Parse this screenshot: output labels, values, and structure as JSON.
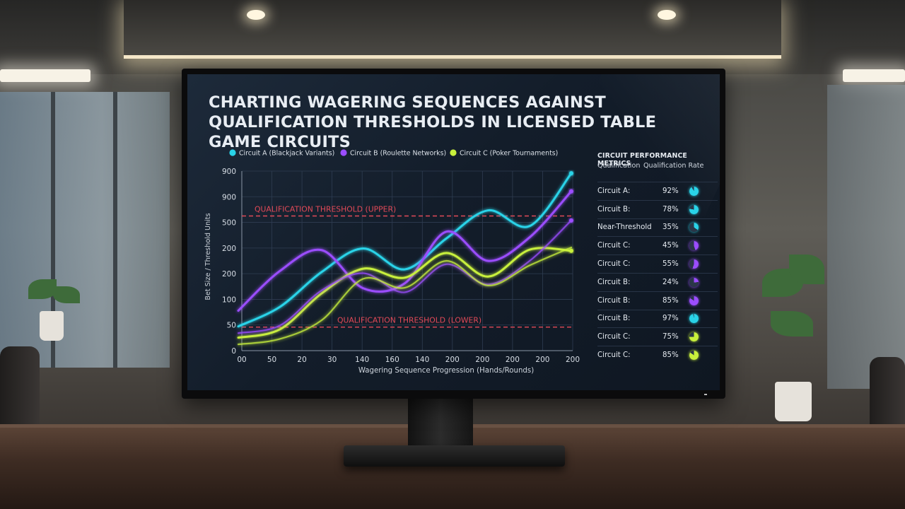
{
  "screen": {
    "title": "CHARTING WAGERING SEQUENCES AGAINST QUALIFICATION THRESHOLDS IN LICENSED TABLE GAME CIRCUITS"
  },
  "colors": {
    "circuit_a": "#29d3e8",
    "circuit_b": "#9b4dff",
    "circuit_c": "#c8f03c",
    "threshold": "#e24a58"
  },
  "metrics": {
    "title": "CIRCUIT PERFORMANCE METRICS",
    "col_qualification": "Qualification",
    "col_rate": "Qualification Rate",
    "rows": [
      {
        "label": "Circuit A:",
        "value": "92%",
        "icon": "pie-icon",
        "color": "#29d3e8",
        "fraction": 0.92
      },
      {
        "label": "Circuit B:",
        "value": "78%",
        "icon": "pie-icon",
        "color": "#29d3e8",
        "fraction": 0.78
      },
      {
        "label": "Near-Threshold",
        "value": "35%",
        "icon": "pie-icon",
        "color": "#29d3e8",
        "fraction": 0.35
      },
      {
        "label": "Circuit C:",
        "value": "45%",
        "icon": "pie-icon",
        "color": "#9b4dff",
        "fraction": 0.45
      },
      {
        "label": "Circuit C:",
        "value": "55%",
        "icon": "pie-icon",
        "color": "#9b4dff",
        "fraction": 0.55
      },
      {
        "label": "Circuit B:",
        "value": "24%",
        "icon": "pie-icon",
        "color": "#9b4dff",
        "fraction": 0.24
      },
      {
        "label": "Circuit B:",
        "value": "85%",
        "icon": "pie-icon",
        "color": "#9b4dff",
        "fraction": 0.85
      },
      {
        "label": "Circuit B:",
        "value": "97%",
        "icon": "pie-icon",
        "color": "#29d3e8",
        "fraction": 0.97
      },
      {
        "label": "Circuit C:",
        "value": "75%",
        "icon": "pie-icon",
        "color": "#c8f03c",
        "fraction": 0.75
      },
      {
        "label": "Circuit C:",
        "value": "85%",
        "icon": "pie-icon",
        "color": "#c8f03c",
        "fraction": 0.85
      }
    ]
  },
  "chart_data": {
    "type": "line",
    "title": "CHARTING WAGERING SEQUENCES AGAINST QUALIFICATION THRESHOLDS IN LICENSED TABLE GAME CIRCUITS",
    "xlabel": "Wagering Sequence Progression (Hands/Rounds)",
    "ylabel": "Bet Size / Threshold Units",
    "x_tick_labels": [
      "00",
      "50",
      "20",
      "30",
      "140",
      "160",
      "140",
      "200",
      "200",
      "200",
      "200",
      "200"
    ],
    "y_tick_labels": [
      "0",
      "50",
      "100",
      "200",
      "200",
      "500",
      "900",
      "900"
    ],
    "grid": true,
    "legend_position": "top",
    "series": [
      {
        "name": "Circuit A (Blackjack Variants)",
        "color": "#29d3e8",
        "values": [
          108,
          195,
          350,
          455,
          362,
          500,
          625,
          555,
          790
        ]
      },
      {
        "name": "Circuit B (Roulette Networks)",
        "color": "#9b4dff",
        "values": [
          178,
          355,
          448,
          278,
          300,
          530,
          400,
          505,
          710
        ]
      },
      {
        "name": "Circuit C (Poker Tournaments)",
        "color": "#c8f03c",
        "values": [
          58,
          95,
          255,
          365,
          325,
          435,
          330,
          450,
          445
        ]
      },
      {
        "name": "",
        "color": "#9b4dff",
        "values": [
          78,
          112,
          268,
          345,
          260,
          385,
          295,
          400,
          580
        ]
      },
      {
        "name": "",
        "color": "#c8f03c",
        "values": [
          28,
          52,
          135,
          320,
          280,
          400,
          290,
          380,
          460
        ]
      }
    ],
    "thresholds": [
      {
        "label": "QUALIFICATION THRESHOLD (UPPER)",
        "value": 600
      },
      {
        "label": "QUALIFICATION THRESHOLD (LOWER)",
        "value": 105
      }
    ]
  }
}
